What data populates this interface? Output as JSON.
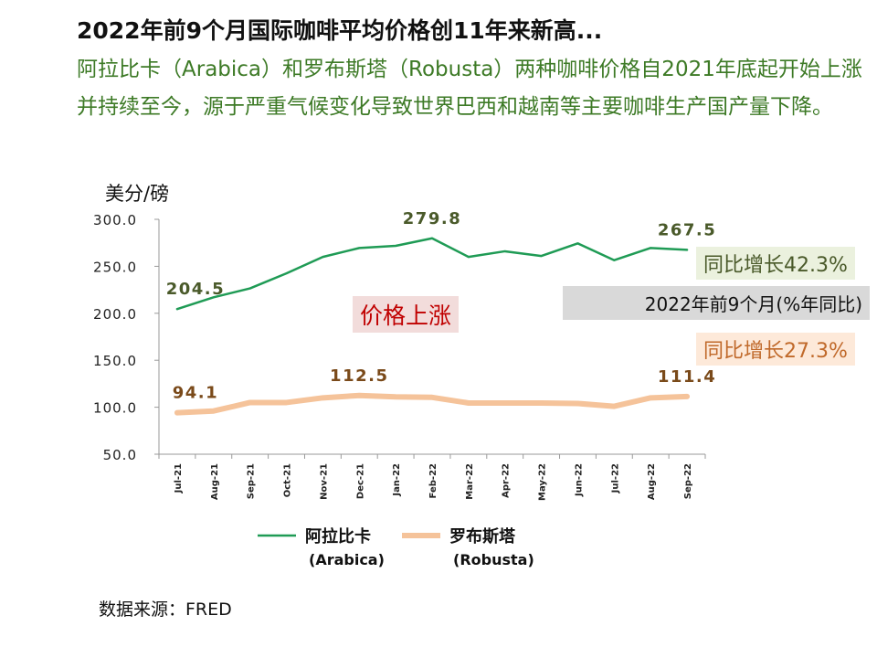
{
  "title": "2022年前9个月国际咖啡平均价格创11年来新高...",
  "subtitle": "阿拉比卡（Arabica）和罗布斯塔（Robusta）两种咖啡价格自2021年底起开始上涨并持续至今，源于严重气候变化导致世界巴西和越南等主要咖啡生产国产量下降。",
  "source": "数据来源：FRED",
  "colors": {
    "arabica": "#1f9b55",
    "robusta": "#f5c39a",
    "label_green": "#4a5a2a",
    "label_brown": "#7a4a1a"
  },
  "annotations": {
    "rise": "价格上涨",
    "arabica_yoy": "同比增长42.3%",
    "period": "2022年前9个月(%年同比)",
    "robusta_yoy": "同比增长27.3%"
  },
  "chart_data": {
    "type": "line",
    "ylabel": "美分/磅",
    "ylim": [
      50,
      300
    ],
    "yticks": [
      "300.0",
      "250.0",
      "200.0",
      "150.0",
      "100.0",
      "50.0"
    ],
    "categories": [
      "Jul-21",
      "Aug-21",
      "Sep-21",
      "Oct-21",
      "Nov-21",
      "Dec-21",
      "Jan-22",
      "Feb-22",
      "Mar-22",
      "Apr-22",
      "May-22",
      "Jun-22",
      "Jul-22",
      "Aug-22",
      "Sep-22"
    ],
    "series": [
      {
        "name": "阿拉比卡\n(Arabica)",
        "legend_line1": "阿拉比卡",
        "legend_line2": "(Arabica)",
        "values": [
          204.5,
          217,
          226.5,
          242.5,
          260,
          269.5,
          271.8,
          279.8,
          260,
          266,
          261,
          274.4,
          256.5,
          269.5,
          267.5
        ],
        "labels": [
          {
            "index": 0,
            "text": "204.5"
          },
          {
            "index": 7,
            "text": "279.8"
          },
          {
            "index": 14,
            "text": "267.5"
          }
        ]
      },
      {
        "name": "罗布斯塔\n(Robusta)",
        "legend_line1": "罗布斯塔",
        "legend_line2": "(Robusta)",
        "values": [
          94.1,
          96,
          105,
          105,
          110,
          112.5,
          111,
          110.5,
          104.5,
          104.5,
          104.5,
          104,
          101,
          110,
          111.4
        ],
        "labels": [
          {
            "index": 0,
            "text": "94.1"
          },
          {
            "index": 5,
            "text": "112.5"
          },
          {
            "index": 14,
            "text": "111.4"
          }
        ]
      }
    ],
    "grid": false,
    "legend": "bottom"
  }
}
